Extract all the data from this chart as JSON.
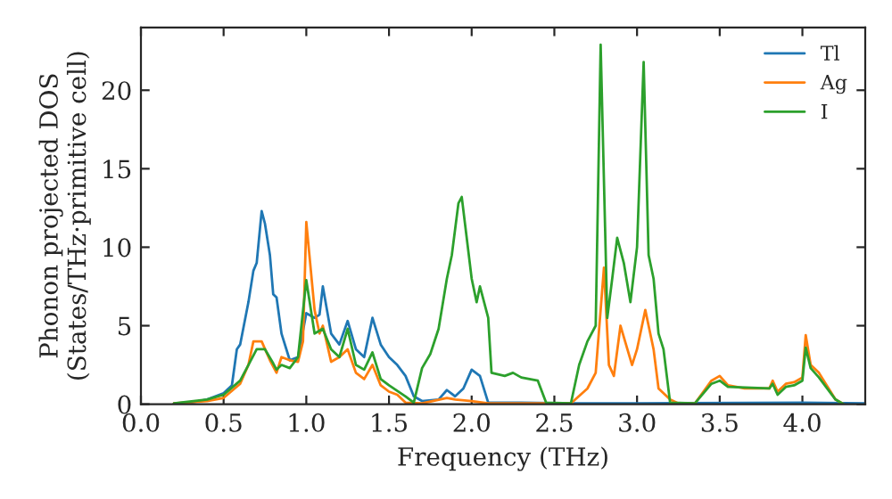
{
  "chart_data": {
    "type": "line",
    "xlabel": "Frequency (THz)",
    "ylabel": "Phonon projected DOS\n(States/THz·primitive cell)",
    "xlim": [
      0,
      4.38
    ],
    "ylim": [
      0,
      24
    ],
    "xticks": [
      {
        "value": 0,
        "label": "0.0"
      },
      {
        "value": 0.5,
        "label": "0.5"
      },
      {
        "value": 1,
        "label": "1.0"
      },
      {
        "value": 1.5,
        "label": "1.5"
      },
      {
        "value": 2,
        "label": "2.0"
      },
      {
        "value": 2.5,
        "label": "2.5"
      },
      {
        "value": 3,
        "label": "3.0"
      },
      {
        "value": 3.5,
        "label": "3.5"
      },
      {
        "value": 4,
        "label": "4.0"
      }
    ],
    "yticks": [
      0,
      5,
      10,
      15,
      20
    ],
    "legend": "top right",
    "grid": false,
    "series": [
      {
        "name": "Tl",
        "color": "#1f77b4",
        "x": [
          0.2,
          0.3,
          0.4,
          0.5,
          0.55,
          0.58,
          0.6,
          0.65,
          0.68,
          0.7,
          0.73,
          0.75,
          0.78,
          0.8,
          0.82,
          0.85,
          0.9,
          0.95,
          1.0,
          1.05,
          1.08,
          1.1,
          1.15,
          1.2,
          1.25,
          1.3,
          1.35,
          1.4,
          1.45,
          1.5,
          1.55,
          1.6,
          1.65,
          1.7,
          1.8,
          1.85,
          1.9,
          1.95,
          2.0,
          2.05,
          2.1,
          2.3,
          2.6,
          3.0,
          4.0,
          4.38
        ],
        "values": [
          0.05,
          0.1,
          0.3,
          0.7,
          1.2,
          3.5,
          3.8,
          6.5,
          8.5,
          9.0,
          12.3,
          11.5,
          9.5,
          7,
          6.8,
          4.5,
          2.8,
          3.0,
          5.8,
          5.5,
          5.7,
          7.5,
          4.5,
          3.8,
          5.3,
          3.5,
          3.0,
          5.5,
          3.8,
          3.0,
          2.5,
          1.8,
          0.5,
          0.2,
          0.3,
          0.9,
          0.5,
          1.0,
          2.2,
          1.8,
          0.1,
          0.1,
          0.05,
          0.05,
          0.1,
          0.05
        ]
      },
      {
        "name": "Ag",
        "color": "#ff7f0e",
        "x": [
          0.2,
          0.4,
          0.5,
          0.6,
          0.65,
          0.68,
          0.73,
          0.78,
          0.82,
          0.85,
          0.9,
          0.95,
          0.98,
          1.0,
          1.05,
          1.08,
          1.1,
          1.15,
          1.2,
          1.25,
          1.3,
          1.35,
          1.4,
          1.45,
          1.5,
          1.55,
          1.6,
          1.7,
          1.85,
          1.9,
          2.0,
          2.1,
          2.6,
          2.7,
          2.75,
          2.8,
          2.83,
          2.86,
          2.9,
          2.95,
          2.97,
          3.0,
          3.05,
          3.1,
          3.13,
          3.2,
          3.25,
          3.35,
          3.45,
          3.5,
          3.55,
          3.65,
          3.8,
          3.82,
          3.85,
          3.9,
          3.95,
          4.0,
          4.02,
          4.05,
          4.1,
          4.2,
          4.25
        ],
        "values": [
          0.05,
          0.2,
          0.4,
          1.3,
          2.5,
          4.0,
          4.0,
          2.8,
          2.0,
          3.0,
          2.8,
          2.7,
          4.0,
          11.6,
          6.0,
          4.5,
          5.0,
          2.7,
          3.0,
          3.5,
          2.0,
          1.6,
          2.5,
          1.2,
          0.8,
          0.6,
          0.1,
          0.05,
          0.4,
          0.3,
          0.2,
          0.05,
          0.05,
          1.0,
          2.0,
          8.7,
          2.5,
          1.8,
          5.0,
          3.2,
          2.5,
          3.5,
          6.0,
          3.5,
          1.0,
          0.3,
          0.05,
          0.05,
          1.5,
          1.8,
          1.2,
          1.0,
          1.0,
          1.5,
          0.8,
          1.3,
          1.4,
          1.7,
          4.4,
          2.5,
          2.0,
          0.3,
          0
        ]
      },
      {
        "name": "I",
        "color": "#2ca02c",
        "x": [
          0.2,
          0.4,
          0.5,
          0.6,
          0.65,
          0.7,
          0.75,
          0.8,
          0.82,
          0.85,
          0.9,
          0.95,
          1.0,
          1.05,
          1.1,
          1.15,
          1.2,
          1.25,
          1.3,
          1.35,
          1.4,
          1.45,
          1.5,
          1.6,
          1.65,
          1.7,
          1.75,
          1.8,
          1.85,
          1.88,
          1.92,
          1.94,
          2.0,
          2.03,
          2.05,
          2.1,
          2.12,
          2.2,
          2.25,
          2.3,
          2.4,
          2.45,
          2.6,
          2.65,
          2.7,
          2.75,
          2.78,
          2.82,
          2.85,
          2.88,
          2.92,
          2.96,
          3.0,
          3.04,
          3.07,
          3.1,
          3.13,
          3.16,
          3.2,
          3.35,
          3.45,
          3.5,
          3.55,
          3.8,
          3.82,
          3.85,
          3.9,
          3.95,
          4.0,
          4.02,
          4.05,
          4.1,
          4.2,
          4.25
        ],
        "values": [
          0.05,
          0.3,
          0.6,
          1.5,
          2.5,
          3.5,
          3.5,
          2.6,
          2.2,
          2.5,
          2.3,
          3.0,
          7.9,
          4.5,
          4.8,
          3.5,
          3.0,
          4.8,
          2.5,
          2.2,
          3.3,
          1.6,
          1.2,
          0.5,
          0.1,
          2.3,
          3.2,
          4.8,
          8.0,
          9.5,
          12.8,
          13.2,
          8.0,
          6.5,
          7.5,
          5.5,
          2.0,
          1.8,
          2.0,
          1.7,
          1.5,
          0.1,
          0.05,
          2.5,
          4.0,
          5.0,
          22.9,
          5.5,
          8.0,
          10.6,
          9.0,
          6.5,
          10.0,
          21.8,
          9.5,
          8.0,
          4.5,
          3.5,
          0.1,
          0.05,
          1.3,
          1.5,
          1.1,
          1.0,
          1.3,
          0.6,
          1.1,
          1.2,
          1.5,
          3.6,
          2.3,
          1.7,
          0.3,
          0
        ]
      }
    ]
  }
}
